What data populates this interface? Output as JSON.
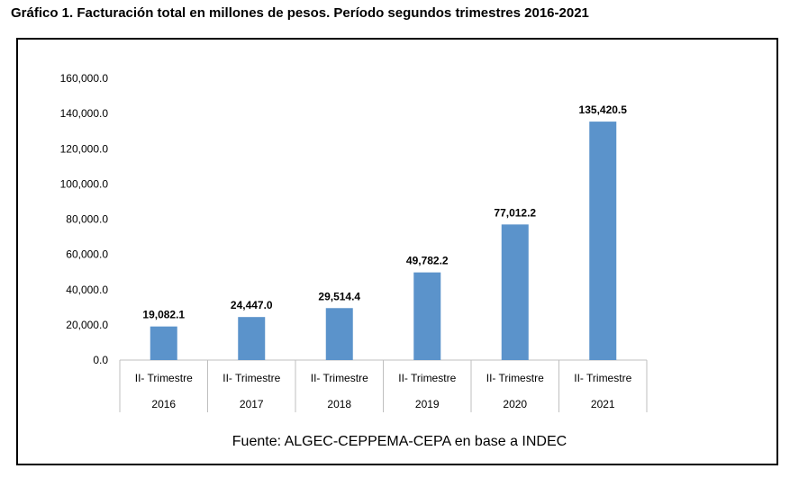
{
  "title": "Gráfico 1. Facturación total en millones de pesos. Período segundos trimestres 2016-2021",
  "source": "Fuente: ALGEC-CEPPEMA-CEPA en base a INDEC",
  "colors": {
    "bar": "#5B93CB",
    "axis": "#BFBFBF",
    "frame": "#000000"
  },
  "chart_data": {
    "type": "bar",
    "categories": [
      [
        "II- Trimestre",
        "2016"
      ],
      [
        "II- Trimestre",
        "2017"
      ],
      [
        "II- Trimestre",
        "2018"
      ],
      [
        "II- Trimestre",
        "2019"
      ],
      [
        "II- Trimestre",
        "2020"
      ],
      [
        "II- Trimestre",
        "2021"
      ]
    ],
    "values": [
      19082.1,
      24447.0,
      29514.4,
      49782.2,
      77012.2,
      135420.5
    ],
    "data_labels": [
      "19,082.1",
      "24,447.0",
      "29,514.4",
      "49,782.2",
      "77,012.2",
      "135,420.5"
    ],
    "yticks": [
      "0.0",
      "20,000.0",
      "40,000.0",
      "60,000.0",
      "80,000.0",
      "100,000.0",
      "120,000.0",
      "140,000.0",
      "160,000.0"
    ],
    "ylim": [
      0,
      160000
    ],
    "grid": false,
    "legend": "none"
  }
}
